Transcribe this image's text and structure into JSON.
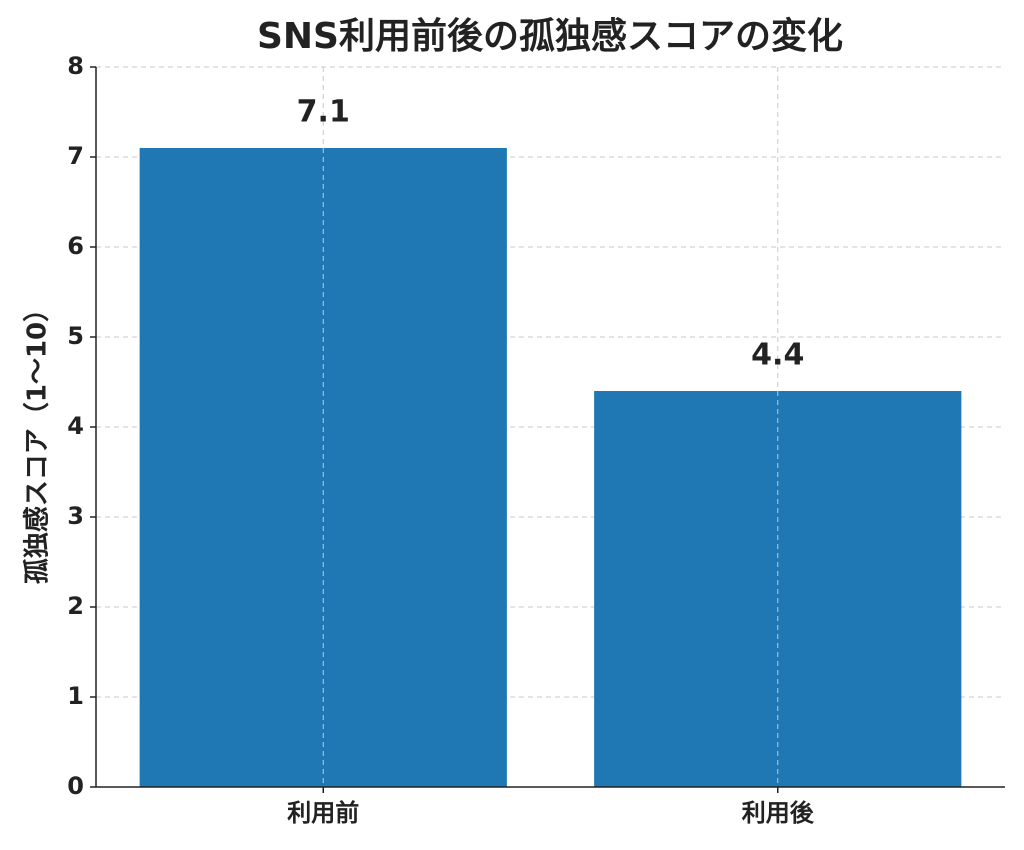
{
  "chart_data": {
    "type": "bar",
    "title": "SNS利用前後の孤独感スコアの変化",
    "y_label": "孤独感スコア（1〜10）",
    "categories": [
      "利用前",
      "利用後"
    ],
    "values": [
      7.1,
      4.4
    ],
    "color": "#1f77b4",
    "ylim": [
      0,
      8
    ],
    "yticks": [
      0,
      1,
      2,
      3,
      4,
      5,
      6,
      7,
      8
    ],
    "grid": true,
    "show_value_labels": true
  }
}
